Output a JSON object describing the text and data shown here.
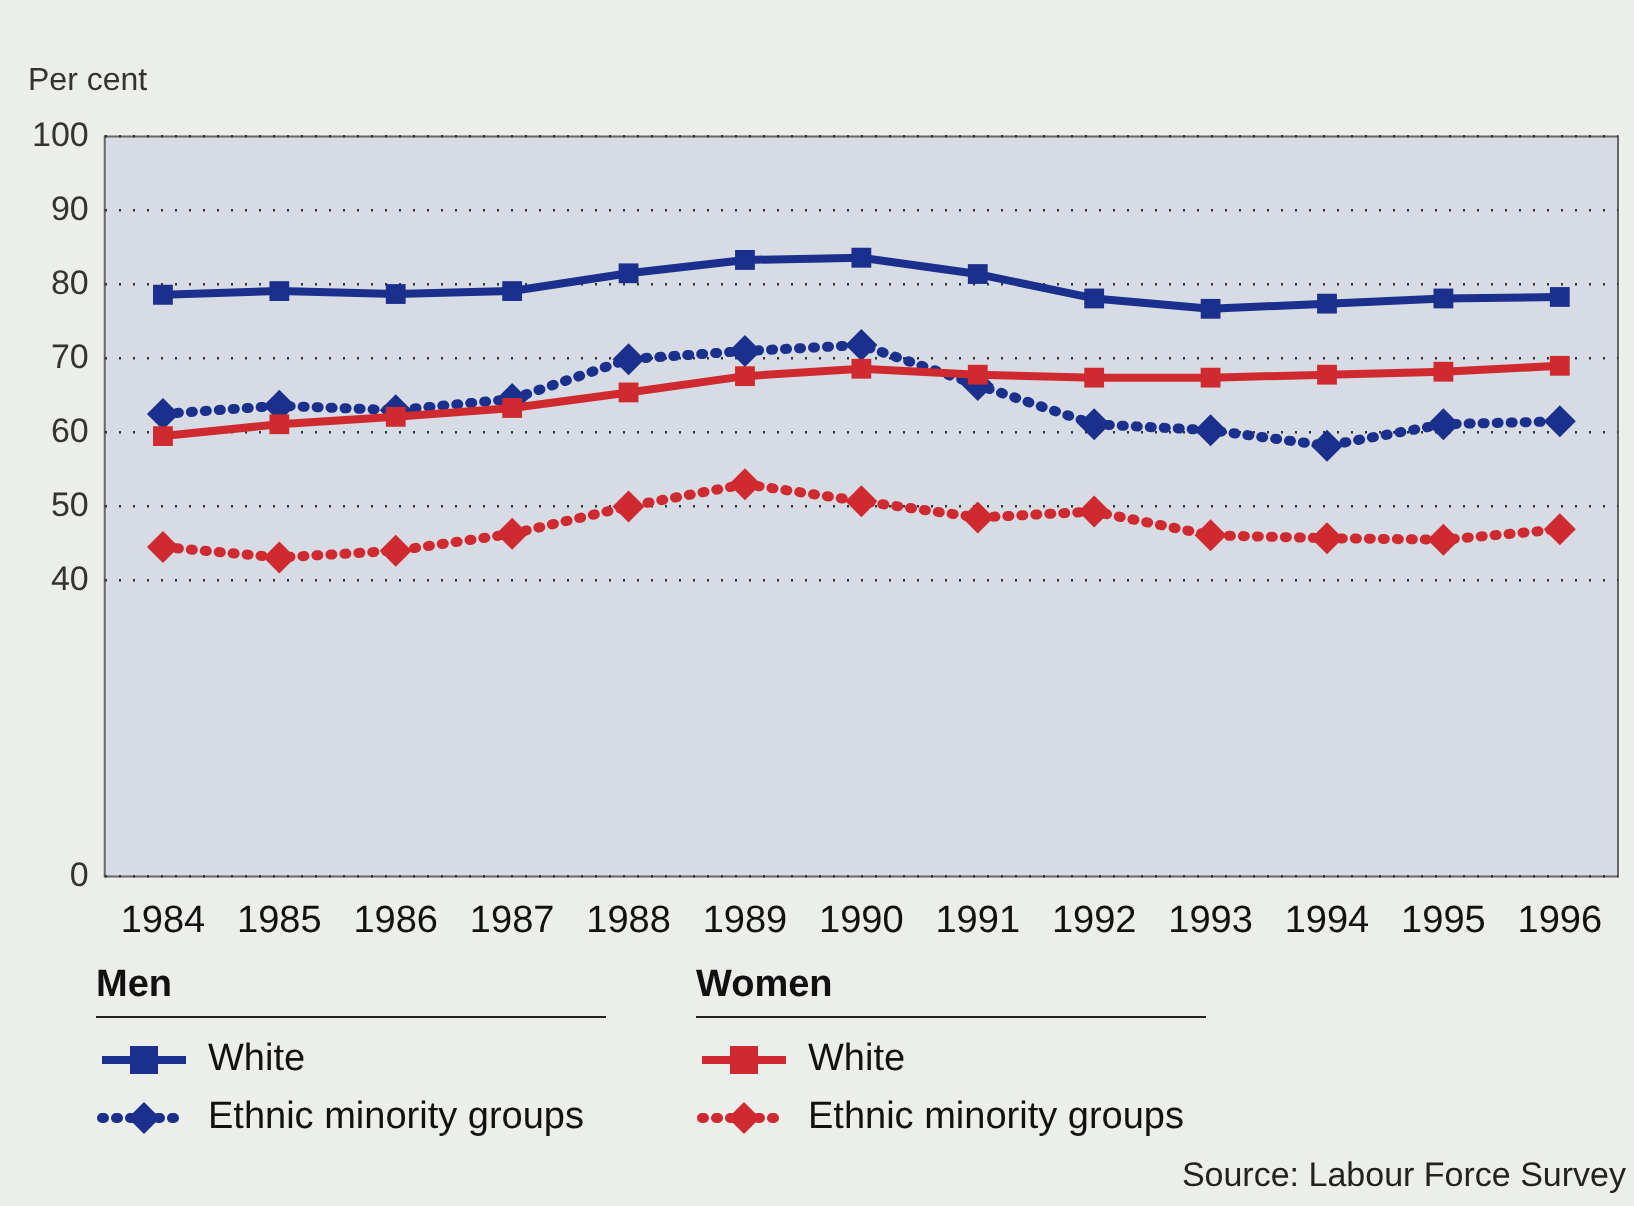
{
  "chart_data": {
    "type": "line",
    "ylabel": "Per cent",
    "categories": [
      "1984",
      "1985",
      "1986",
      "1987",
      "1988",
      "1989",
      "1990",
      "1991",
      "1992",
      "1993",
      "1994",
      "1995",
      "1996"
    ],
    "series": [
      {
        "name": "White",
        "color": "#1b2f8c",
        "marker": "square",
        "line_style": "solid",
        "values": [
          78.6,
          79.1,
          78.7,
          79.1,
          81.5,
          83.3,
          83.6,
          81.4,
          78.1,
          76.7,
          77.4,
          78.1,
          78.3
        ]
      },
      {
        "name": "Ethnic minority groups",
        "color": "#1b2f8c",
        "marker": "diamond",
        "line_style": "dotted",
        "values": [
          62.5,
          63.6,
          63.0,
          64.5,
          69.9,
          71.0,
          71.8,
          66.4,
          61.1,
          60.3,
          58.2,
          61.1,
          61.5
        ]
      },
      {
        "name": "White",
        "color": "#cf2a2f",
        "marker": "square",
        "line_style": "solid",
        "values": [
          59.5,
          61.1,
          62.1,
          63.3,
          65.4,
          67.6,
          68.6,
          67.8,
          67.4,
          67.4,
          67.8,
          68.2,
          69.0
        ]
      },
      {
        "name": "Ethnic minority groups",
        "color": "#cf2a2f",
        "marker": "diamond",
        "line_style": "dotted",
        "values": [
          44.5,
          43.1,
          44.0,
          46.3,
          50.0,
          53.0,
          50.7,
          48.5,
          49.3,
          46.1,
          45.7,
          45.5,
          46.9
        ]
      }
    ],
    "ylim": [
      0,
      100
    ],
    "yticks": [
      0,
      40,
      50,
      60,
      70,
      80,
      90,
      100
    ],
    "grid": "y",
    "legend": "bottom left",
    "annotations": [
      "Men",
      "Women",
      "Source: Labour Force Survey"
    ]
  }
}
